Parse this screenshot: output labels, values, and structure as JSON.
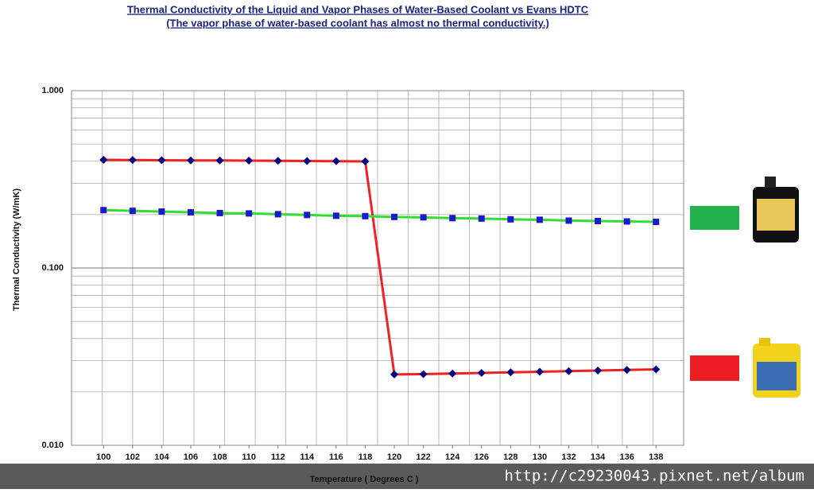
{
  "chart_data": {
    "type": "line",
    "title": "Thermal Conductivity of the Liquid and Vapor Phases of Water-Based Coolant vs Evans HDTC",
    "subtitle": "(The vapor phase of water-based coolant has almost no thermal conductivity.)",
    "x_label": "Temperature ( Degrees C )",
    "y_label": "Thermal Conductivity  (W/mK)",
    "x": [
      100,
      102,
      104,
      106,
      108,
      110,
      112,
      114,
      116,
      118,
      120,
      122,
      124,
      126,
      128,
      130,
      132,
      134,
      136,
      138
    ],
    "xlim": [
      97.8,
      139.9
    ],
    "xticks": [
      100,
      102,
      104,
      106,
      108,
      110,
      112,
      114,
      116,
      118,
      120,
      122,
      124,
      126,
      128,
      130,
      132,
      134,
      136,
      138
    ],
    "ylim": [
      0.01,
      1
    ],
    "yticks": [
      {
        "value": 0.01,
        "label": "0.010"
      },
      {
        "value": 0.1,
        "label": "0.100"
      },
      {
        "value": 1,
        "label": "1.000"
      }
    ],
    "log_y": true,
    "grid": true,
    "series": [
      {
        "color": "#ee2222",
        "marker": "diamond",
        "marker_color": "#000080",
        "values": [
          0.407,
          0.406,
          0.405,
          0.404,
          0.404,
          0.403,
          0.402,
          0.401,
          0.4,
          0.399,
          0.0251,
          0.0252,
          0.0254,
          0.0256,
          0.0258,
          0.026,
          0.0262,
          0.0264,
          0.0266,
          0.0268
        ]
      },
      {
        "color": "#33dd33",
        "marker": "square",
        "marker_color": "#1a1acc",
        "values": [
          0.212,
          0.21,
          0.208,
          0.206,
          0.204,
          0.203,
          0.201,
          0.199,
          0.197,
          0.196,
          0.194,
          0.193,
          0.191,
          0.19,
          0.188,
          0.187,
          0.185,
          0.184,
          0.183,
          0.182
        ]
      }
    ]
  },
  "watermark": "http://c29230043.pixnet.net/album"
}
